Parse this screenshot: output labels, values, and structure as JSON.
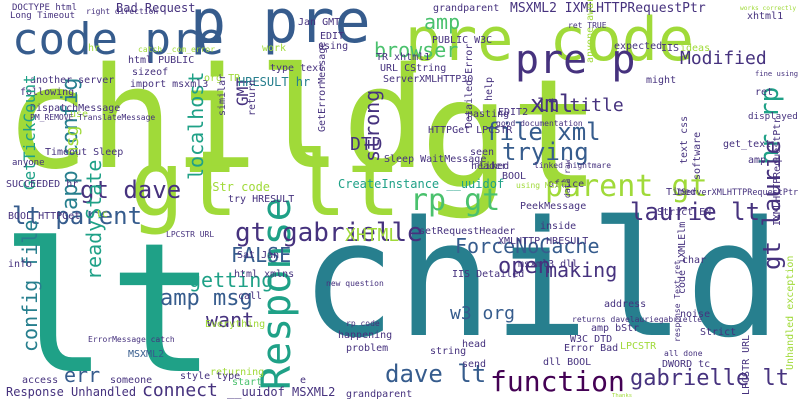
{
  "palette": {
    "lime": "#a0da39",
    "green": "#4ac16d",
    "teal": "#1fa187",
    "cyan": "#277f8e",
    "slate": "#365c8d",
    "indigo": "#46327e",
    "purple": "#440154",
    "yellow": "#bddf26",
    "background": "#ffffff"
  },
  "words": [
    "child",
    "gt",
    "lt",
    "child",
    "gt lt",
    "pre code",
    "p pre",
    "code pre",
    "Response",
    "function",
    "gt gabrielle",
    "laurie lt",
    "gabrielle lt",
    "dave lt",
    "gt dave",
    "lt parent",
    "parent gt",
    "rp gt",
    "pre p",
    "xml",
    "amp msg",
    "config file",
    "hr rp",
    "gt laurie",
    "file xml",
    "trying",
    "ForceNoCache",
    "browser",
    "Modified",
    "XHTML",
    "getting",
    "making",
    "open",
    "want",
    "connect",
    "FALSE",
    "readyState",
    "app config",
    "err",
    "localhost",
    "amp",
    "strong",
    "DTD",
    "lt title",
    "w3 org",
    "msg",
    "GMT",
    "Bad Request",
    "MSXML2 IXMLHTTPRequestPtr",
    "Jan GMT",
    "DOCTYPE html",
    "Long Timeout",
    "another server",
    "following",
    "DispatchMessage",
    "HRESULT hr",
    "html PUBLIC",
    "import msxml3",
    "Timeout Sleep",
    "GetTickCount",
    "SUCCEEDED hr",
    "BOOL HTTPGet",
    "anyone",
    "info",
    "CreateInstance __uuidof",
    "bStr code",
    "try HRESULT",
    "IIS Detailed",
    "setRequestHeader",
    "Sat Jan",
    "html xmlns",
    "call",
    "Everything",
    "returning",
    "style type",
    "__uuidof MSXML2",
    "Response Unhandled",
    "access",
    "someone",
    "start",
    "MSXML2",
    "PeekMessage",
    "XMLHTTP HRESULT",
    "msxml3 dll",
    "inside",
    "Strict EN",
    "Timed",
    "noise",
    "LPCSTR",
    "amp bStr",
    "W3C DTD",
    "code iXMLElm",
    "Strict",
    "address",
    "happening",
    "problem",
    "string",
    "head",
    "send",
    "dll BOOL",
    "Error Bad",
    "DWORD tc",
    "Thanks",
    "LPCSTR URL",
    "Unhandled exception",
    "IXMLHTTPRequestPtr",
    "IServerXMLHTTPRequestPtr",
    "grandparent",
    "xhtml1",
    "expected",
    "IIS",
    "might",
    "fine using",
    "ret",
    "displayed",
    "get_text",
    "amp e",
    "text css",
    "software",
    "char",
    "office",
    "BOOL",
    "liked",
    "header",
    "seen",
    "HTTPGet LPCSTR",
    "Detailed Error",
    "pasting",
    "help",
    "EDIT2",
    "Sleep WaitMessage",
    "GetErrorMessage",
    "ServerXMLHTTP30",
    "URL CString",
    "TR xhtml1",
    "PUBLIC W3C",
    "EDIT",
    "using",
    "type text",
    "work",
    "org TR",
    "sizeof",
    "similar",
    "use",
    "hr",
    "return",
    "tc",
    "e",
    "grandparent",
    "ideas",
    "anyone aware",
    "works correctly",
    "ret TRUE",
    "right direction",
    "catch _com_error",
    "good documentation",
    "linked nightmare",
    "using MSXML",
    "new question",
    "ErrorMessage catch",
    "rp code",
    "data raw",
    "all done",
    "response Text ret",
    "returns davelauriegabrielle",
    "PM_REMOVE TranslateMessage",
    "LPCSTR URL"
  ]
}
